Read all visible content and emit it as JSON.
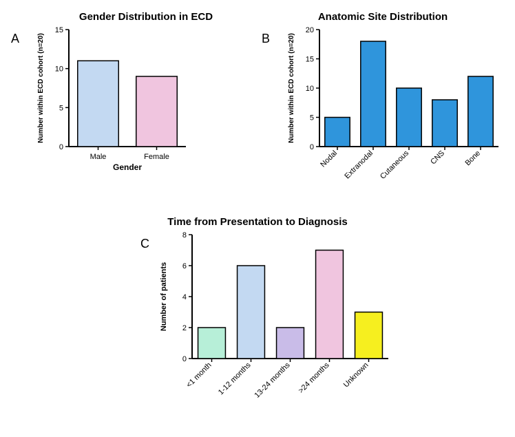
{
  "panelA": {
    "letter": "A",
    "title": "Gender Distribution in ECD",
    "title_fontsize": 15,
    "type": "bar",
    "categories": [
      "Male",
      "Female"
    ],
    "values": [
      11,
      9
    ],
    "bar_colors": [
      "#c3d9f2",
      "#f0c5df"
    ],
    "bar_border": "#000000",
    "ylabel": "Number within ECD cohort (n=20)",
    "xlabel": "Gender",
    "label_fontsize": 10,
    "tick_fontsize": 11,
    "ylim": [
      0,
      15
    ],
    "ytick_step": 5,
    "background_color": "#ffffff",
    "axis_color": "#000000",
    "bar_width_ratio": 0.7
  },
  "panelB": {
    "letter": "B",
    "title": "Anatomic Site Distribution",
    "title_fontsize": 15,
    "type": "bar",
    "categories": [
      "Nodal",
      "Extranodal",
      "Cutaneous",
      "CNS",
      "Bone"
    ],
    "values": [
      5,
      18,
      10,
      8,
      12
    ],
    "bar_colors": [
      "#2f95dc",
      "#2f95dc",
      "#2f95dc",
      "#2f95dc",
      "#2f95dc"
    ],
    "bar_border": "#000000",
    "ylabel": "Number within ECD cohort (n=20)",
    "xlabel": "",
    "label_fontsize": 10,
    "tick_fontsize": 11,
    "ylim": [
      0,
      20
    ],
    "ytick_step": 5,
    "background_color": "#ffffff",
    "axis_color": "#000000",
    "bar_width_ratio": 0.7,
    "xtick_rotation": -45
  },
  "panelC": {
    "letter": "C",
    "title": "Time from Presentation to Diagnosis",
    "title_fontsize": 15,
    "type": "bar",
    "categories": [
      "<1 month",
      "1-12 months",
      "13-24 months",
      ">24 months",
      "Unknown"
    ],
    "values": [
      2,
      6,
      2,
      7,
      3
    ],
    "bar_colors": [
      "#b7efd8",
      "#c3d9f2",
      "#c9bce8",
      "#f0c5df",
      "#f6ef1f"
    ],
    "bar_border": "#000000",
    "ylabel": "Number of patients",
    "xlabel": "",
    "label_fontsize": 11,
    "tick_fontsize": 11,
    "ylim": [
      0,
      8
    ],
    "ytick_step": 2,
    "background_color": "#ffffff",
    "axis_color": "#000000",
    "bar_width_ratio": 0.7,
    "xtick_rotation": -45
  }
}
